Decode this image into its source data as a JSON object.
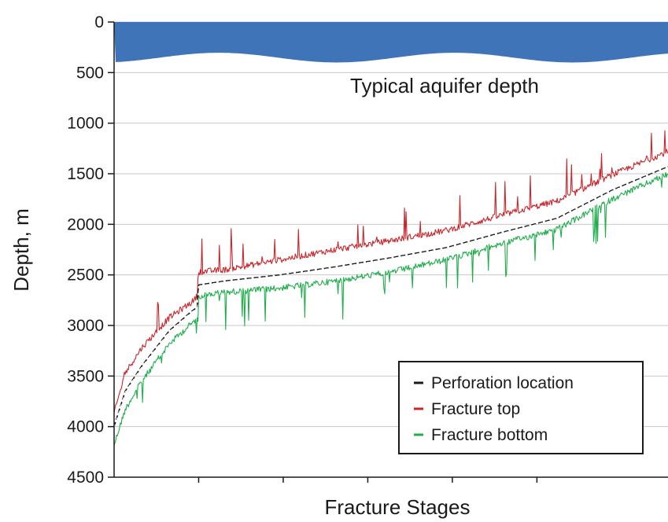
{
  "chart_data": {
    "type": "line",
    "title": "",
    "xlabel": "Fracture Stages",
    "ylabel": "Depth, m",
    "ylim": [
      0,
      4500
    ],
    "y_inverted": true,
    "y_ticks": [
      0,
      500,
      1000,
      1500,
      2000,
      2500,
      3000,
      3500,
      4000,
      4500
    ],
    "grid": true,
    "legend_placement": "bottom-right",
    "aquifer": {
      "label": "Typical aquifer depth",
      "depth_range": [
        0,
        400
      ],
      "color": "#3f74b8"
    },
    "series": [
      {
        "name": "Perforation location",
        "color": "#1a1a1a",
        "dash": true,
        "x": [
          0,
          0.02,
          0.05,
          0.1,
          0.14,
          0.15,
          0.152,
          0.2,
          0.3,
          0.4,
          0.5,
          0.6,
          0.7,
          0.8,
          0.9,
          1.0
        ],
        "y": [
          4000,
          3650,
          3400,
          3050,
          2860,
          2820,
          2600,
          2560,
          2500,
          2420,
          2330,
          2230,
          2080,
          1940,
          1660,
          1430
        ]
      },
      {
        "name": "Fracture top",
        "color": "#c8262b",
        "x": [
          0,
          0.02,
          0.05,
          0.1,
          0.14,
          0.15,
          0.152,
          0.2,
          0.3,
          0.4,
          0.5,
          0.6,
          0.7,
          0.8,
          0.9,
          1.0
        ],
        "y": [
          3900,
          3500,
          3250,
          2950,
          2800,
          2740,
          2500,
          2480,
          2380,
          2280,
          2190,
          2090,
          1940,
          1800,
          1540,
          1310
        ]
      },
      {
        "name": "Fracture bottom",
        "color": "#1fae4b",
        "x": [
          0,
          0.02,
          0.05,
          0.1,
          0.14,
          0.15,
          0.152,
          0.2,
          0.3,
          0.4,
          0.5,
          0.6,
          0.7,
          0.8,
          0.9,
          1.0
        ],
        "y": [
          4150,
          3800,
          3520,
          3150,
          2950,
          2900,
          2680,
          2640,
          2600,
          2530,
          2440,
          2320,
          2160,
          2020,
          1720,
          1470
        ]
      }
    ]
  }
}
